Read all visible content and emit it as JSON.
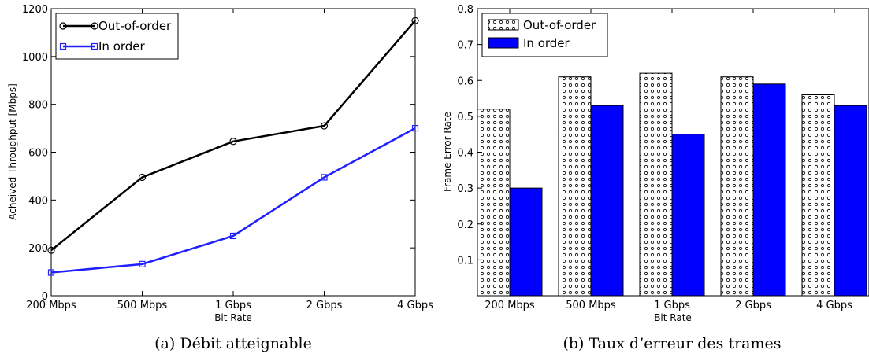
{
  "chart_data": [
    {
      "type": "line",
      "categories": [
        "200 Mbps",
        "500 Mbps",
        "1 Gbps",
        "2 Gbps",
        "4 Gbps"
      ],
      "series": [
        {
          "name": "Out-of-order",
          "values": [
            190,
            495,
            645,
            710,
            1150
          ],
          "color": "#000000",
          "marker": "circle"
        },
        {
          "name": "In order",
          "values": [
            97,
            132,
            250,
            495,
            700
          ],
          "color": "#1f1fff",
          "marker": "square"
        }
      ],
      "xlabel": "Bit Rate",
      "ylabel": "Acheived Throughput [Mbps]",
      "ylim": [
        0,
        1200
      ],
      "yticks": [
        "0",
        "200",
        "400",
        "600",
        "800",
        "1000",
        "1200"
      ],
      "grid": false,
      "legend": "top-left",
      "caption": "(a) Débit atteignable"
    },
    {
      "type": "bar",
      "categories": [
        "200 Mbps",
        "500 Mbps",
        "1 Gbps",
        "2 Gbps",
        "4 Gbps"
      ],
      "series": [
        {
          "name": "Out-of-order",
          "values": [
            0.52,
            0.61,
            0.62,
            0.61,
            0.56
          ],
          "color": "#ffffff",
          "pattern": "dots"
        },
        {
          "name": "In order",
          "values": [
            0.3,
            0.53,
            0.45,
            0.59,
            0.53
          ],
          "color": "#0000ff"
        }
      ],
      "xlabel": "Bit Rate",
      "ylabel": "Frame Error Rate",
      "ylim": [
        0,
        0.8
      ],
      "yticks": [
        "0.1",
        "0.2",
        "0.3",
        "0.4",
        "0.5",
        "0.6",
        "0.7",
        "0.8"
      ],
      "grid": false,
      "legend": "top-left",
      "caption": "(b) Taux d’erreur des trames"
    }
  ]
}
